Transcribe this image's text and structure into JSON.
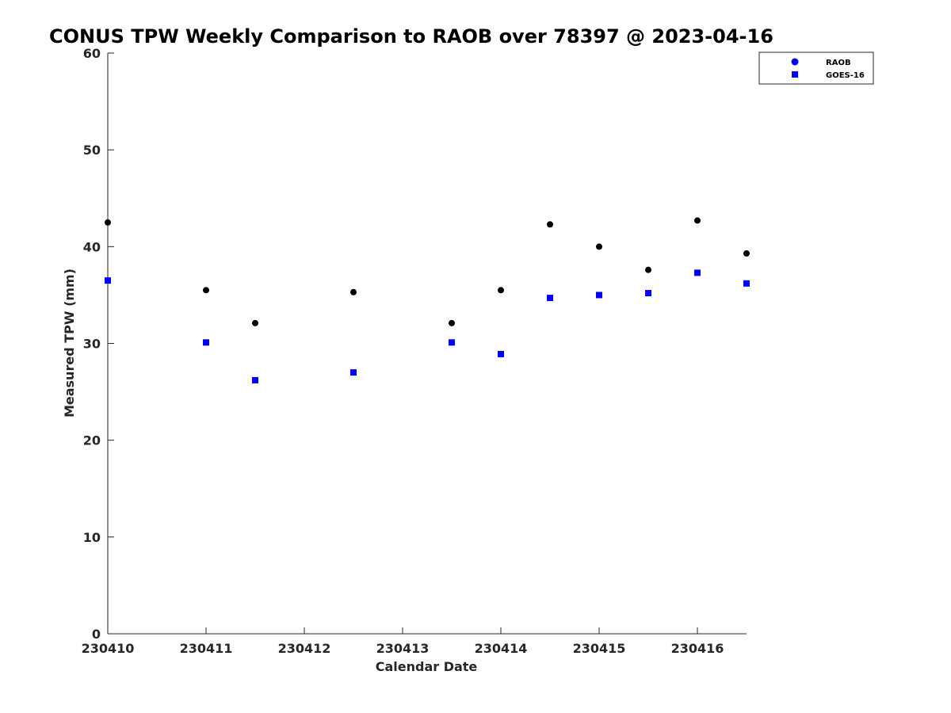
{
  "chart_data": {
    "type": "scatter",
    "title": "CONUS TPW Weekly Comparison to RAOB over 78397 @ 2023-04-16",
    "xlabel": "Calendar Date",
    "ylabel": "Measured TPW (mm)",
    "xlim": [
      230410,
      230416.5
    ],
    "ylim": [
      0,
      60
    ],
    "xticks": [
      230410,
      230411,
      230412,
      230413,
      230414,
      230415,
      230416
    ],
    "xtick_labels": [
      "230410",
      "230411",
      "230412",
      "230413",
      "230414",
      "230415",
      "230416"
    ],
    "yticks": [
      0,
      10,
      20,
      30,
      40,
      50,
      60
    ],
    "ytick_labels": [
      "0",
      "10",
      "20",
      "30",
      "40",
      "50",
      "60"
    ],
    "grid": false,
    "legend_position": "top-right",
    "series": [
      {
        "name": "RAOB",
        "marker": "circle",
        "color": "#000000",
        "legend_color": "#0000ff",
        "points": [
          {
            "x": 230410.0,
            "y": 42.5
          },
          {
            "x": 230411.0,
            "y": 35.5
          },
          {
            "x": 230411.5,
            "y": 32.1
          },
          {
            "x": 230412.5,
            "y": 35.3
          },
          {
            "x": 230413.5,
            "y": 32.1
          },
          {
            "x": 230414.0,
            "y": 35.5
          },
          {
            "x": 230414.5,
            "y": 42.3
          },
          {
            "x": 230415.0,
            "y": 40.0
          },
          {
            "x": 230415.5,
            "y": 37.6
          },
          {
            "x": 230416.0,
            "y": 42.7
          },
          {
            "x": 230416.5,
            "y": 39.3
          }
        ]
      },
      {
        "name": "GOES-16",
        "marker": "square",
        "color": "#0000ff",
        "legend_color": "#0000ff",
        "points": [
          {
            "x": 230410.0,
            "y": 36.5
          },
          {
            "x": 230411.0,
            "y": 30.1
          },
          {
            "x": 230411.5,
            "y": 26.2
          },
          {
            "x": 230412.5,
            "y": 27.0
          },
          {
            "x": 230413.5,
            "y": 30.1
          },
          {
            "x": 230414.0,
            "y": 28.9
          },
          {
            "x": 230414.5,
            "y": 34.7
          },
          {
            "x": 230415.0,
            "y": 35.0
          },
          {
            "x": 230415.5,
            "y": 35.2
          },
          {
            "x": 230416.0,
            "y": 37.3
          },
          {
            "x": 230416.5,
            "y": 36.2
          }
        ]
      }
    ]
  }
}
